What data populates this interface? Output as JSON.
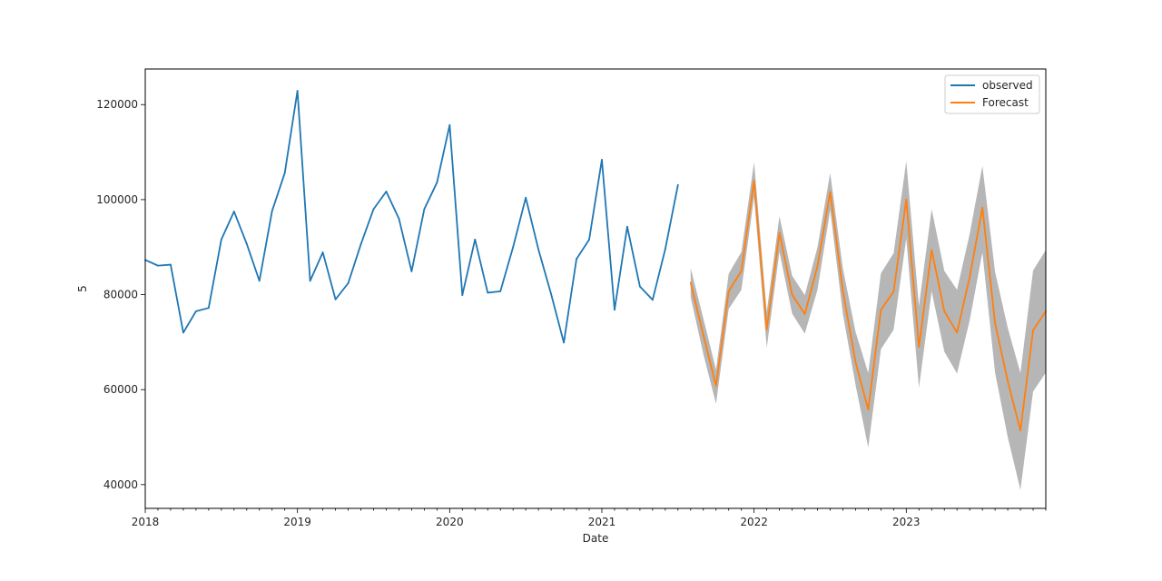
{
  "chart_data": {
    "type": "line",
    "title": "",
    "xlabel": "Date",
    "ylabel": "5",
    "xlim": [
      "2018-01",
      "2023-12"
    ],
    "ylim": [
      35000,
      127500
    ],
    "x_ticks": [
      "2018",
      "2019",
      "2020",
      "2021",
      "2022",
      "2023"
    ],
    "y_ticks": [
      40000,
      60000,
      80000,
      100000,
      120000
    ],
    "y_tick_labels": [
      "40000",
      "60000",
      "80000",
      "100000",
      "120000"
    ],
    "legend": {
      "position": "upper-right",
      "entries": [
        "observed",
        "Forecast"
      ]
    },
    "series": [
      {
        "name": "observed",
        "color": "#1f77b4",
        "x": [
          "2018-01",
          "2018-02",
          "2018-03",
          "2018-04",
          "2018-05",
          "2018-06",
          "2018-07",
          "2018-08",
          "2018-09",
          "2018-10",
          "2018-11",
          "2018-12",
          "2019-01",
          "2019-02",
          "2019-03",
          "2019-04",
          "2019-05",
          "2019-06",
          "2019-07",
          "2019-08",
          "2019-09",
          "2019-10",
          "2019-11",
          "2019-12",
          "2020-01",
          "2020-02",
          "2020-03",
          "2020-04",
          "2020-05",
          "2020-06",
          "2020-07",
          "2020-08",
          "2020-09",
          "2020-10",
          "2020-11",
          "2020-12",
          "2021-01",
          "2021-02",
          "2021-03",
          "2021-04",
          "2021-05",
          "2021-06",
          "2021-07"
        ],
        "values": [
          87300,
          86100,
          86300,
          72000,
          76500,
          77200,
          91600,
          97500,
          90700,
          82900,
          97600,
          105600,
          122900,
          82900,
          88900,
          79000,
          82400,
          90600,
          98000,
          101700,
          96000,
          84900,
          98000,
          103600,
          115700,
          79900,
          91600,
          80400,
          80700,
          90000,
          100400,
          89500,
          80100,
          69900,
          87500,
          91600,
          108400,
          76800,
          94300,
          81700,
          78900,
          89600,
          103100
        ]
      },
      {
        "name": "Forecast",
        "color": "#ff7f0e",
        "x": [
          "2021-08",
          "2021-09",
          "2021-10",
          "2021-11",
          "2021-12",
          "2022-01",
          "2022-02",
          "2022-03",
          "2022-04",
          "2022-05",
          "2022-06",
          "2022-07",
          "2022-08",
          "2022-09",
          "2022-10",
          "2022-11",
          "2022-12",
          "2023-01",
          "2023-02",
          "2023-03",
          "2023-04",
          "2023-05",
          "2023-06",
          "2023-07",
          "2023-08",
          "2023-09",
          "2023-10",
          "2023-11",
          "2023-12"
        ],
        "values": [
          82500,
          71500,
          60800,
          80700,
          85000,
          104000,
          72700,
          93000,
          80000,
          75900,
          86000,
          101600,
          80800,
          65800,
          55800,
          76800,
          80600,
          100000,
          69000,
          89400,
          76500,
          72000,
          83700,
          98300,
          74000,
          61800,
          51400,
          72500,
          76500
        ],
        "lower": [
          79500,
          67500,
          57000,
          77000,
          81000,
          100500,
          68800,
          89000,
          76000,
          71800,
          81000,
          97800,
          76000,
          61000,
          47800,
          68500,
          72600,
          91800,
          60400,
          80700,
          68000,
          63400,
          74600,
          88900,
          63600,
          50000,
          38900,
          59600,
          63600
        ],
        "upper": [
          85600,
          75000,
          64200,
          84400,
          89000,
          107900,
          76400,
          96500,
          84000,
          79900,
          90000,
          105600,
          85500,
          72200,
          63500,
          84500,
          88700,
          108100,
          77600,
          98000,
          85000,
          81000,
          92800,
          107100,
          84800,
          73000,
          63500,
          85100,
          89400
        ]
      }
    ]
  }
}
